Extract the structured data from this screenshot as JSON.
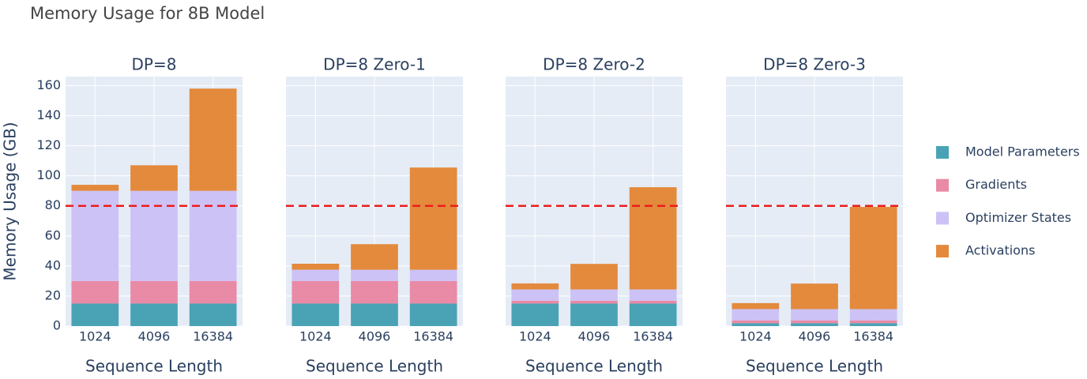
{
  "title": "Memory Usage for 8B Model",
  "chart_data": [
    {
      "type": "stacked-bar",
      "title": "DP=8",
      "x_label": "Sequence Length",
      "y_label": "Memory Usage (GB)",
      "categories": [
        "1024",
        "4096",
        "16384"
      ],
      "ylim": [
        0,
        166
      ],
      "yticks": [
        0,
        20,
        40,
        60,
        80,
        100,
        120,
        140,
        160
      ],
      "threshold": 80,
      "threshold_color": "#ee1c1c",
      "grid": true,
      "legend": "right",
      "series": [
        {
          "name": "Model Parameters",
          "color": "#4aa3b5",
          "values": [
            15,
            15,
            15
          ]
        },
        {
          "name": "Gradients",
          "color": "#e98aa6",
          "values": [
            15,
            15,
            15
          ]
        },
        {
          "name": "Optimizer States",
          "color": "#cdc2f6",
          "values": [
            60,
            60,
            60
          ]
        },
        {
          "name": "Activations",
          "color": "#e38a3c",
          "values": [
            4,
            17,
            68
          ]
        }
      ]
    },
    {
      "type": "stacked-bar",
      "title": "DP=8 Zero-1",
      "x_label": "Sequence Length",
      "categories": [
        "1024",
        "4096",
        "16384"
      ],
      "ylim": [
        0,
        166
      ],
      "yticks": [
        0,
        20,
        40,
        60,
        80,
        100,
        120,
        140,
        160
      ],
      "threshold": 80,
      "threshold_color": "#ee1c1c",
      "grid": true,
      "series": [
        {
          "name": "Model Parameters",
          "color": "#4aa3b5",
          "values": [
            15,
            15,
            15
          ]
        },
        {
          "name": "Gradients",
          "color": "#e98aa6",
          "values": [
            15,
            15,
            15
          ]
        },
        {
          "name": "Optimizer States",
          "color": "#cdc2f6",
          "values": [
            7.5,
            7.5,
            7.5
          ]
        },
        {
          "name": "Activations",
          "color": "#e38a3c",
          "values": [
            4,
            17,
            68
          ]
        }
      ]
    },
    {
      "type": "stacked-bar",
      "title": "DP=8 Zero-2",
      "x_label": "Sequence Length",
      "categories": [
        "1024",
        "4096",
        "16384"
      ],
      "ylim": [
        0,
        166
      ],
      "yticks": [
        0,
        20,
        40,
        60,
        80,
        100,
        120,
        140,
        160
      ],
      "threshold": 80,
      "threshold_color": "#ee1c1c",
      "grid": true,
      "series": [
        {
          "name": "Model Parameters",
          "color": "#4aa3b5",
          "values": [
            15,
            15,
            15
          ]
        },
        {
          "name": "Gradients",
          "color": "#e98aa6",
          "values": [
            1.9,
            1.9,
            1.9
          ]
        },
        {
          "name": "Optimizer States",
          "color": "#cdc2f6",
          "values": [
            7.5,
            7.5,
            7.5
          ]
        },
        {
          "name": "Activations",
          "color": "#e38a3c",
          "values": [
            4,
            17,
            68
          ]
        }
      ]
    },
    {
      "type": "stacked-bar",
      "title": "DP=8 Zero-3",
      "x_label": "Sequence Length",
      "categories": [
        "1024",
        "4096",
        "16384"
      ],
      "ylim": [
        0,
        166
      ],
      "yticks": [
        0,
        20,
        40,
        60,
        80,
        100,
        120,
        140,
        160
      ],
      "threshold": 80,
      "threshold_color": "#ee1c1c",
      "grid": true,
      "series": [
        {
          "name": "Model Parameters",
          "color": "#4aa3b5",
          "values": [
            1.9,
            1.9,
            1.9
          ]
        },
        {
          "name": "Gradients",
          "color": "#e98aa6",
          "values": [
            1.9,
            1.9,
            1.9
          ]
        },
        {
          "name": "Optimizer States",
          "color": "#cdc2f6",
          "values": [
            7.5,
            7.5,
            7.5
          ]
        },
        {
          "name": "Activations",
          "color": "#e38a3c",
          "values": [
            4,
            17,
            68
          ]
        }
      ]
    }
  ]
}
